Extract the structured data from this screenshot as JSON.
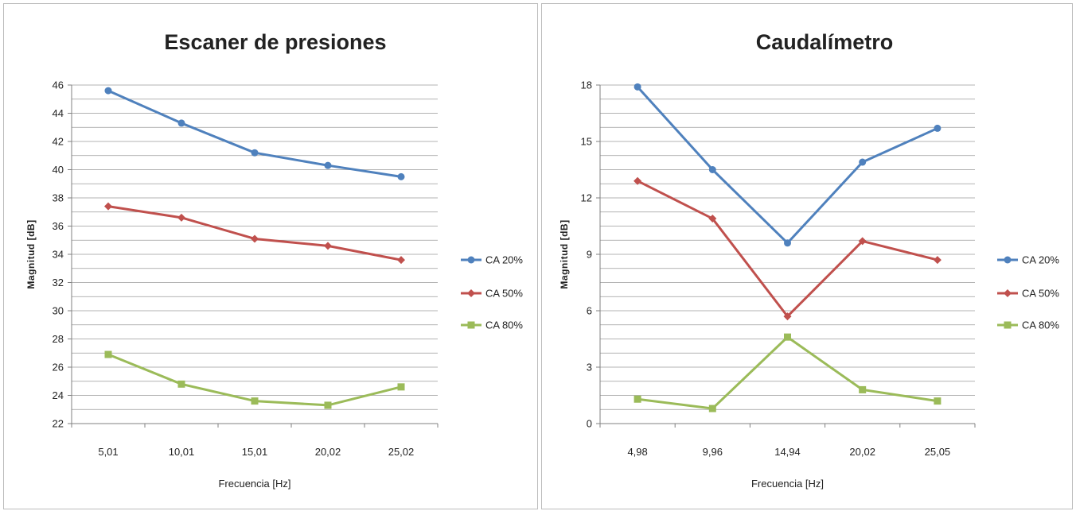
{
  "chart_data": [
    {
      "type": "line",
      "title": "Escaner de presiones",
      "xlabel": "Frecuencia [Hz]",
      "ylabel": "Magnitud [dB]",
      "categories": [
        "5,01",
        "10,01",
        "15,01",
        "20,02",
        "25,02"
      ],
      "ylim": [
        22,
        46
      ],
      "yticks": [
        22,
        24,
        26,
        28,
        30,
        32,
        34,
        36,
        38,
        40,
        42,
        44,
        46
      ],
      "minor_grid_step": 1,
      "grid": true,
      "legend_position": "right",
      "series": [
        {
          "name": "CA 20%",
          "color": "#4f81bd",
          "marker": "circle",
          "values": [
            45.6,
            43.3,
            41.2,
            40.3,
            39.5
          ]
        },
        {
          "name": "CA 50%",
          "color": "#c0504d",
          "marker": "diamond",
          "values": [
            37.4,
            36.6,
            35.1,
            34.6,
            33.6
          ]
        },
        {
          "name": "CA 80%",
          "color": "#9bbb59",
          "marker": "square",
          "values": [
            26.9,
            24.8,
            23.6,
            23.3,
            24.6
          ]
        }
      ]
    },
    {
      "type": "line",
      "title": "Caudalímetro",
      "xlabel": "Frecuencia [Hz]",
      "ylabel": "Magnitud [dB]",
      "categories": [
        "4,98",
        "9,96",
        "14,94",
        "20,02",
        "25,05"
      ],
      "ylim": [
        0,
        18
      ],
      "yticks": [
        0,
        3,
        6,
        9,
        12,
        15,
        18
      ],
      "minor_grid_step": 0.75,
      "grid": true,
      "legend_position": "right",
      "series": [
        {
          "name": "CA 20%",
          "color": "#4f81bd",
          "marker": "circle",
          "values": [
            17.9,
            13.5,
            9.6,
            13.9,
            15.7
          ]
        },
        {
          "name": "CA 50%",
          "color": "#c0504d",
          "marker": "diamond",
          "values": [
            12.9,
            10.9,
            5.7,
            9.7,
            8.7
          ]
        },
        {
          "name": "CA 80%",
          "color": "#9bbb59",
          "marker": "square",
          "values": [
            1.3,
            0.8,
            4.6,
            1.8,
            1.2
          ]
        }
      ]
    }
  ]
}
